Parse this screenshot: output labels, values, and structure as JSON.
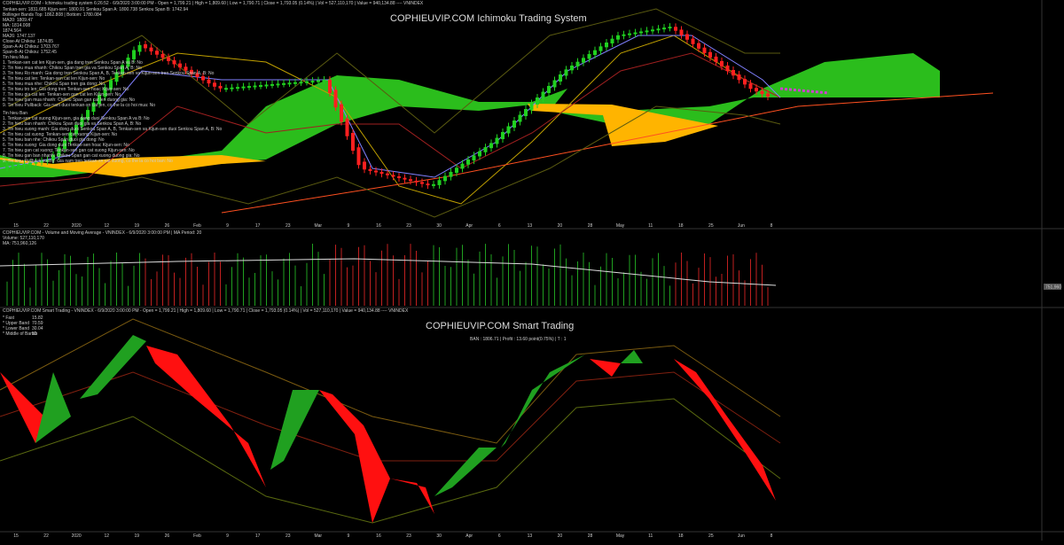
{
  "header": {
    "line": "COPHIEUVIP.COM - Ichimoku trading system 6:26:52 - 6/9/2020 3:00:00 PM - Open = 1,799.21 | High = 1,809.60 | Low = 1,790.71 | Close = 1,793.05 (0.14%) | Vol = 527,110,170 | Value = 940,134.88 ---- VNINDEX"
  },
  "ichimoku": {
    "title": "COPHIEUVIP.COM Ichimoku Trading System",
    "info": [
      "Tenkan-sen: 1831.685  Kijun-sen: 1800.91  Senkou Span A: 1800.738  Senkou Span B: 1742.94",
      "Bollinger Bands Top: 1862.808 | Bottom: 1780.084",
      "MA20: 1809.47",
      "MA: 1814.008",
      "1874.564",
      "MA26: 1747.137",
      "Close-At Chikou: 1874.85",
      "Span-A-At Chikou: 1703.767",
      "Span-B-At Chikou: 1752.45"
    ],
    "buy_heading": "Tin hieu Mua",
    "buy_signals": [
      "1. Tenkan-sen cat len Kijun-sen, gia dang tren Senkou Span A va B: No",
      "2. Tin hieu mua nhanh: Chikou Span tren gia va Senkou Span A, B: No",
      "3. Tin hieu Ro manh: Gia dong tren Senkou Span A, B, Tenkan-sen va Kijun-sen tren Senkou Span A, B: No",
      "4. Tin hieu cat len: Tenkan-sen cat len Kijun-sen: No",
      "5. Tin hieu mua nhe: Chikou Span tren gia dong: No",
      "6. Tin hieu tro len: Gia dong tren Tenkan-sen hoac Kijun-sen: No",
      "7. Tin hieu gia cat len: Tenkan-sen gan cat len Kijun-sen: No",
      "8. Tin hieu gan mua nhanh: Chikou Span gan cat len duong gia: No",
      "9. Tin hieu Pullback: Gia nam duoi tenkan-sn cat len, co the la co hoi mua: No"
    ],
    "sell_heading": "Tin hieu Ban",
    "sell_signals": [
      "1. Tenkan-sen cat xuong Kijun-sen, gia dang duoi Senkou Span A va B: No",
      "2. Tin hieu ban nhanh: Chikou Span duoi gia va Senkou Span A, B: No",
      "3. Tin hieu xuong manh: Gia dong duoi Senkou Span A, B, Tenkan-sen va Kijun-sen duoi Senkou Span A, B: No",
      "4. Tin hieu cat xuong: Tenkan-sen cat xuong Kijun-sen: No",
      "5. Tin hieu ban nhe: Chikou Span duoi gia dong: No",
      "6. Tin hieu xuong: Gia dong duoi Tenkan-sen hoac Kijun-sen: No",
      "7. Tin hieu gan cat xuong: Tenkan-sen gan cat xuong Kijun-sen: No",
      "8. Tin hieu gan ban nhanh: Chikou Span gan cat xuong duong gia: No",
      "9. Tin hieu Pullback xuong: Gia nam tren tenkan-sn cat xuong, co the la co hoi ban: No"
    ]
  },
  "dates": [
    "15",
    "22",
    "2020",
    "12",
    "19",
    "26",
    "Feb",
    "9",
    "17",
    "23",
    "Mar",
    "9",
    "16",
    "23",
    "30",
    "Apr",
    "6",
    "13",
    "20",
    "28",
    "May",
    "11",
    "18",
    "25",
    "Jun",
    "8"
  ],
  "volume": {
    "header": "COPHIEUVIP.COM - Volume and Moving Average - VNINDEX - 6/9/2020 3:00:00 PM | MA Period: 20",
    "volume": "Volume: 527,110,170",
    "ma": "MA: 751,960,126",
    "last_label": "751,960"
  },
  "smart": {
    "header": "COPHIEUVIP.COM Smart Trading - VNINDEX - 6/9/2020 3:00:00 PM - Open = 1,799.21 | High = 1,809.60 | Low = 1,790.71 | Close = 1,793.05 (0.14%) | Vol = 527,110,170 | Value = 940,134.88 ---- VNINDEX",
    "title": "COPHIEUVIP.COM Smart Trading",
    "signal": "BAN : 1806.71 | Profit : 13.60 point(0.75%) | T : 1",
    "legend": [
      {
        "name": "* Fast",
        "value": "15.82"
      },
      {
        "name": "* Upper Band",
        "value": "70.59"
      },
      {
        "name": "* Lower Band",
        "value": "30.04"
      },
      {
        "name": "* Middle of Bands",
        "value": "50"
      }
    ]
  }
}
